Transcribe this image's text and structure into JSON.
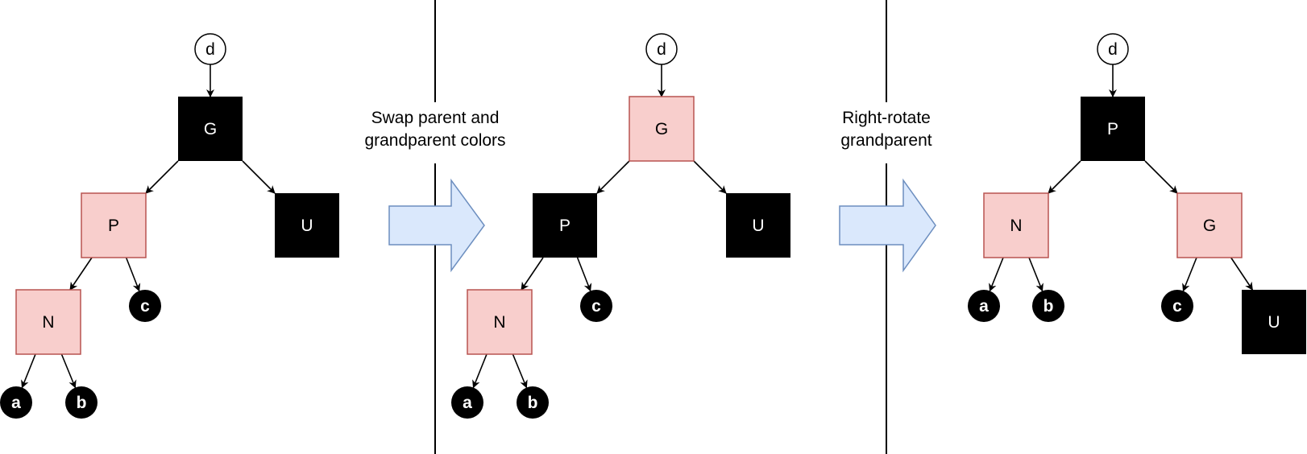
{
  "colors": {
    "black_node": "#000000",
    "red_node_fill": "#f8cecc",
    "red_node_stroke": "#b85450",
    "arrow_fill": "#dae8fc",
    "arrow_stroke": "#6c8ebf",
    "line": "#000000",
    "background": "#ffffff"
  },
  "steps": [
    {
      "line1": "Swap parent and",
      "line2": "grandparent colors"
    },
    {
      "line1": "Right-rotate",
      "line2": "grandparent"
    }
  ],
  "panels": [
    {
      "root": "d",
      "nodes": [
        {
          "label": "G",
          "color": "black"
        },
        {
          "label": "P",
          "color": "red"
        },
        {
          "label": "U",
          "color": "black"
        },
        {
          "label": "N",
          "color": "red"
        },
        {
          "label": "c",
          "color": "leaf"
        },
        {
          "label": "a",
          "color": "leaf"
        },
        {
          "label": "b",
          "color": "leaf"
        }
      ]
    },
    {
      "root": "d",
      "nodes": [
        {
          "label": "G",
          "color": "red"
        },
        {
          "label": "P",
          "color": "black"
        },
        {
          "label": "U",
          "color": "black"
        },
        {
          "label": "N",
          "color": "red"
        },
        {
          "label": "c",
          "color": "leaf"
        },
        {
          "label": "a",
          "color": "leaf"
        },
        {
          "label": "b",
          "color": "leaf"
        }
      ]
    },
    {
      "root": "d",
      "nodes": [
        {
          "label": "P",
          "color": "black"
        },
        {
          "label": "N",
          "color": "red"
        },
        {
          "label": "G",
          "color": "red"
        },
        {
          "label": "a",
          "color": "leaf"
        },
        {
          "label": "b",
          "color": "leaf"
        },
        {
          "label": "c",
          "color": "leaf"
        },
        {
          "label": "U",
          "color": "black"
        }
      ]
    }
  ]
}
